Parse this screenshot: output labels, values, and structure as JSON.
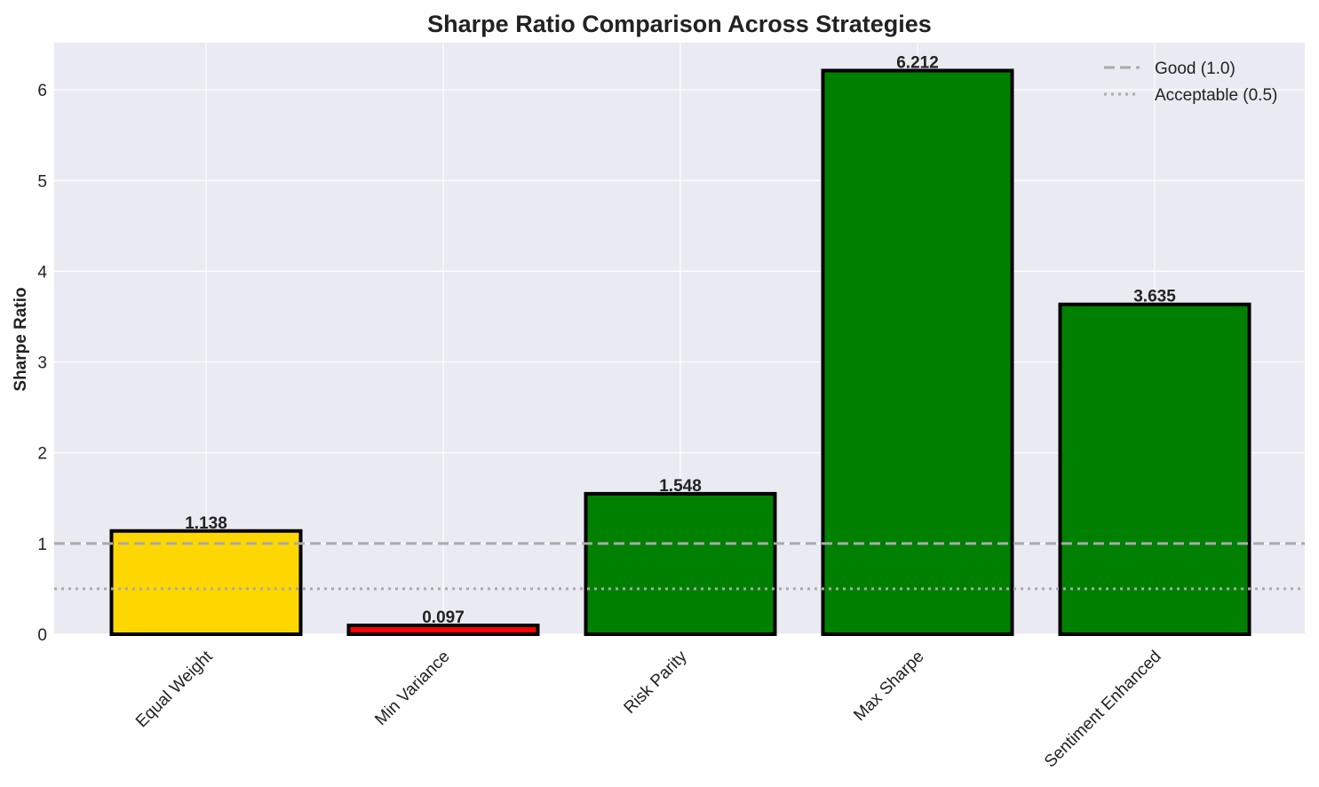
{
  "chart_data": {
    "type": "bar",
    "title": "Sharpe Ratio Comparison Across Strategies",
    "xlabel": "",
    "ylabel": "Sharpe Ratio",
    "ylim": [
      0,
      6.52
    ],
    "yticks": [
      0,
      1,
      2,
      3,
      4,
      5,
      6
    ],
    "grid": true,
    "categories": [
      "Equal Weight",
      "Min Variance",
      "Risk Parity",
      "Max Sharpe",
      "Sentiment Enhanced"
    ],
    "values": [
      1.138,
      0.097,
      1.548,
      6.212,
      3.635
    ],
    "value_labels": [
      "1.138",
      "0.097",
      "1.548",
      "6.212",
      "3.635"
    ],
    "bar_colors": [
      "#FFD700",
      "#FF0000",
      "#008000",
      "#008000",
      "#008000"
    ],
    "bar_edge_color": "#000000",
    "background_color": "#EAEAF2",
    "reference_lines": [
      {
        "label": "Good (1.0)",
        "y": 1.0,
        "style": "dashed",
        "color": "#AAAAAA"
      },
      {
        "label": "Acceptable (0.5)",
        "y": 0.5,
        "style": "dotted",
        "color": "#AAAAAA"
      }
    ],
    "legend_position": "upper-right"
  }
}
